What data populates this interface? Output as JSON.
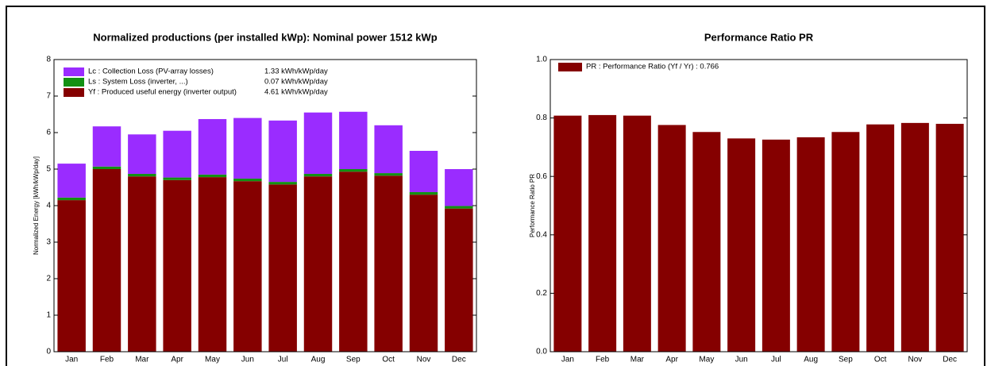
{
  "chart_data": [
    {
      "type": "bar",
      "stacked": true,
      "title": "Normalized productions (per installed kWp):  Nominal power 1512 kWp",
      "y_label": "Normalized Energy [kWh/kWp/day]",
      "categories": [
        "Jan",
        "Feb",
        "Mar",
        "Apr",
        "May",
        "Jun",
        "Jul",
        "Aug",
        "Sep",
        "Oct",
        "Nov",
        "Dec"
      ],
      "series": [
        {
          "name": "Yf : Produced useful energy  (inverter output)",
          "legend_value": "4.61 kWh/kWp/day",
          "color": "#850000",
          "values": [
            4.15,
            5.0,
            4.8,
            4.7,
            4.78,
            4.67,
            4.58,
            4.8,
            4.93,
            4.82,
            4.3,
            3.92
          ]
        },
        {
          "name": "Ls : System Loss  (inverter, ...)",
          "legend_value": "0.07 kWh/kWp/day",
          "color": "#139113",
          "values": [
            0.07,
            0.07,
            0.07,
            0.07,
            0.07,
            0.07,
            0.07,
            0.07,
            0.07,
            0.07,
            0.07,
            0.07
          ]
        },
        {
          "name": "Lc : Collection Loss (PV-array losses)",
          "legend_value": "1.33 kWh/kWp/day",
          "color": "#9a2cff",
          "values": [
            0.93,
            1.1,
            1.08,
            1.28,
            1.52,
            1.66,
            1.68,
            1.68,
            1.57,
            1.31,
            1.13,
            1.01
          ]
        }
      ],
      "ylim": [
        0,
        8
      ],
      "yticks": [
        0,
        1,
        2,
        3,
        4,
        5,
        6,
        7,
        8
      ]
    },
    {
      "type": "bar",
      "stacked": false,
      "title": "Performance Ratio PR",
      "y_label": "Performance Ratio PR",
      "categories": [
        "Jan",
        "Feb",
        "Mar",
        "Apr",
        "May",
        "Jun",
        "Jul",
        "Aug",
        "Sep",
        "Oct",
        "Nov",
        "Dec"
      ],
      "series": [
        {
          "name": "PR : Performance Ratio (Yf / Yr) :  0.766",
          "color": "#850000",
          "values": [
            0.808,
            0.81,
            0.808,
            0.776,
            0.752,
            0.73,
            0.726,
            0.734,
            0.752,
            0.778,
            0.783,
            0.78
          ]
        }
      ],
      "ylim": [
        0,
        1
      ],
      "yticks": [
        {
          "value": 0,
          "label": "0.0"
        },
        0.2,
        0.4,
        0.6,
        0.8,
        {
          "value": 1,
          "label": "1.0"
        }
      ]
    }
  ]
}
